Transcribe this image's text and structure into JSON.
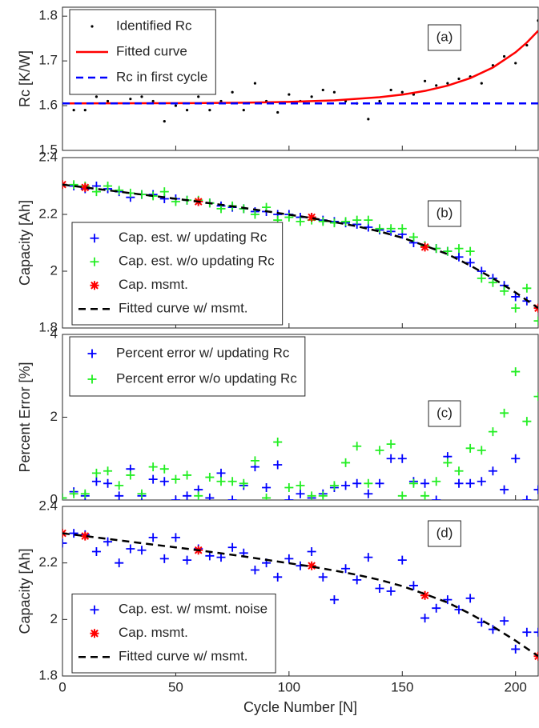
{
  "chart_data": [
    {
      "type": "line",
      "ylabel": "Rc [K/W]",
      "annotation": "(a)",
      "legend": "upper left",
      "xlim": [
        0,
        210
      ],
      "xticks": [
        0,
        50,
        100,
        150,
        200
      ],
      "ylim": [
        1.5,
        1.82
      ],
      "yticks": [
        1.5,
        1.6,
        1.7,
        1.8
      ],
      "series": [
        {
          "name": "Identified Rc",
          "color": "#000000",
          "marker": "dot",
          "x": [
            0,
            5,
            10,
            15,
            20,
            25,
            30,
            35,
            40,
            45,
            50,
            55,
            60,
            65,
            70,
            75,
            80,
            85,
            90,
            95,
            100,
            105,
            110,
            115,
            120,
            125,
            130,
            135,
            140,
            145,
            150,
            155,
            160,
            165,
            170,
            175,
            180,
            185,
            190,
            195,
            200,
            205,
            210
          ],
          "values": [
            1.605,
            1.59,
            1.59,
            1.62,
            1.61,
            1.64,
            1.615,
            1.62,
            1.61,
            1.565,
            1.6,
            1.59,
            1.62,
            1.59,
            1.61,
            1.63,
            1.59,
            1.65,
            1.61,
            1.585,
            1.625,
            1.61,
            1.62,
            1.635,
            1.63,
            1.61,
            1.605,
            1.57,
            1.61,
            1.635,
            1.63,
            1.625,
            1.655,
            1.645,
            1.65,
            1.66,
            1.665,
            1.65,
            1.69,
            1.71,
            1.695,
            1.735,
            1.79
          ]
        },
        {
          "name": "Fitted curve",
          "color": "#ff0000",
          "marker": "none",
          "dash": false,
          "x": [
            0,
            20,
            40,
            60,
            80,
            100,
            120,
            140,
            150,
            160,
            170,
            180,
            190,
            200,
            205,
            210
          ],
          "values": [
            1.6051,
            1.6052,
            1.6054,
            1.6058,
            1.6067,
            1.6084,
            1.6118,
            1.6188,
            1.6246,
            1.6329,
            1.6447,
            1.6615,
            1.6853,
            1.7191,
            1.7411,
            1.7673
          ]
        },
        {
          "name": "Rc in first cycle",
          "color": "#0000ff",
          "marker": "none",
          "dash": true,
          "x": [
            0,
            210
          ],
          "values": [
            1.605,
            1.605
          ]
        }
      ]
    },
    {
      "type": "line",
      "ylabel": "Capacity [Ah]",
      "annotation": "(b)",
      "legend": "lower left",
      "xlim": [
        0,
        210
      ],
      "xticks": [
        0,
        50,
        100,
        150,
        200
      ],
      "ylim": [
        1.8,
        2.4
      ],
      "yticks": [
        1.8,
        2,
        2.2,
        2.4
      ],
      "series": [
        {
          "name": "Cap. est. w/ updating Rc",
          "color": "#0000ff",
          "marker": "plus",
          "x": [
            0,
            5,
            10,
            15,
            20,
            25,
            30,
            35,
            40,
            45,
            50,
            55,
            60,
            65,
            70,
            75,
            80,
            85,
            90,
            95,
            100,
            105,
            110,
            115,
            120,
            125,
            130,
            135,
            140,
            145,
            150,
            155,
            160,
            165,
            170,
            175,
            180,
            185,
            190,
            195,
            200,
            205,
            210
          ],
          "values": [
            2.305,
            2.3,
            2.29,
            2.3,
            2.29,
            2.28,
            2.26,
            2.27,
            2.27,
            2.255,
            2.255,
            2.25,
            2.245,
            2.24,
            2.23,
            2.225,
            2.22,
            2.21,
            2.21,
            2.2,
            2.2,
            2.19,
            2.19,
            2.18,
            2.175,
            2.17,
            2.165,
            2.155,
            2.145,
            2.14,
            2.13,
            2.1,
            2.09,
            2.08,
            2.07,
            2.05,
            2.03,
            2.0,
            1.975,
            1.95,
            1.91,
            1.895,
            1.87
          ]
        },
        {
          "name": "Cap. est. w/o updating Rc",
          "color": "#22ee22",
          "marker": "plus",
          "x": [
            0,
            5,
            10,
            15,
            20,
            25,
            30,
            35,
            40,
            45,
            50,
            55,
            60,
            65,
            70,
            75,
            80,
            85,
            90,
            95,
            100,
            105,
            110,
            115,
            120,
            125,
            130,
            135,
            140,
            145,
            150,
            155,
            160,
            165,
            170,
            175,
            180,
            185,
            190,
            195,
            200,
            205,
            210
          ],
          "values": [
            2.305,
            2.305,
            2.3,
            2.28,
            2.3,
            2.285,
            2.275,
            2.27,
            2.265,
            2.28,
            2.245,
            2.25,
            2.25,
            2.24,
            2.22,
            2.23,
            2.22,
            2.2,
            2.225,
            2.18,
            2.19,
            2.175,
            2.18,
            2.175,
            2.17,
            2.175,
            2.18,
            2.18,
            2.15,
            2.15,
            2.15,
            2.12,
            2.09,
            2.08,
            2.07,
            2.08,
            2.07,
            1.975,
            1.96,
            1.93,
            1.87,
            1.94,
            1.825
          ]
        },
        {
          "name": "Cap. msmt.",
          "color": "#ff0000",
          "marker": "asterisk",
          "x": [
            0,
            10,
            60,
            110,
            160,
            210
          ],
          "values": [
            2.305,
            2.295,
            2.245,
            2.19,
            2.085,
            1.87
          ]
        },
        {
          "name": "Fitted curve w/ msmt.",
          "color": "#000000",
          "marker": "none",
          "dash": true,
          "x": [
            0,
            10,
            20,
            30,
            40,
            50,
            60,
            70,
            80,
            90,
            100,
            110,
            120,
            130,
            140,
            150,
            160,
            170,
            180,
            190,
            200,
            210
          ],
          "values": [
            2.305,
            2.295,
            2.285,
            2.275,
            2.265,
            2.255,
            2.245,
            2.234,
            2.223,
            2.211,
            2.199,
            2.187,
            2.173,
            2.158,
            2.14,
            2.118,
            2.09,
            2.06,
            2.02,
            1.975,
            1.925,
            1.87
          ]
        }
      ]
    },
    {
      "type": "line",
      "ylabel": "Percent Error [%]",
      "annotation": "(c)",
      "legend": "upper left",
      "xlim": [
        0,
        210
      ],
      "xticks": [
        0,
        50,
        100,
        150,
        200
      ],
      "ylim": [
        0,
        4
      ],
      "yticks": [
        0,
        2,
        4
      ],
      "series": [
        {
          "name": "Percent error w/ updating Rc",
          "color": "#0000ff",
          "marker": "plus",
          "x": [
            0,
            5,
            10,
            15,
            20,
            25,
            30,
            35,
            40,
            45,
            50,
            55,
            60,
            65,
            70,
            75,
            80,
            85,
            90,
            95,
            100,
            105,
            110,
            115,
            120,
            125,
            130,
            135,
            140,
            145,
            150,
            155,
            160,
            165,
            170,
            175,
            180,
            185,
            190,
            195,
            200,
            205,
            210
          ],
          "values": [
            0.05,
            0.2,
            0.1,
            0.45,
            0.4,
            0.1,
            0.75,
            0.1,
            0.5,
            0.45,
            0.0,
            0.1,
            0.25,
            0.05,
            0.65,
            0.0,
            0.35,
            0.8,
            0.3,
            0.85,
            0.0,
            0.15,
            0.05,
            0.15,
            0.3,
            0.35,
            0.4,
            0.15,
            0.4,
            1.0,
            1.0,
            0.45,
            0.4,
            0.0,
            1.05,
            0.4,
            0.4,
            0.45,
            0.7,
            0.25,
            1.0,
            0.0,
            0.25
          ]
        },
        {
          "name": "Percent error w/o updating Rc",
          "color": "#22ee22",
          "marker": "plus",
          "x": [
            0,
            5,
            10,
            15,
            20,
            25,
            30,
            35,
            40,
            45,
            50,
            55,
            60,
            65,
            70,
            75,
            80,
            85,
            90,
            95,
            100,
            105,
            110,
            115,
            120,
            125,
            130,
            135,
            140,
            145,
            150,
            155,
            160,
            165,
            170,
            175,
            180,
            185,
            190,
            195,
            200,
            205,
            210
          ],
          "values": [
            0.05,
            0.15,
            0.15,
            0.65,
            0.7,
            0.35,
            0.6,
            0.15,
            0.8,
            0.75,
            0.5,
            0.6,
            0.1,
            0.55,
            0.45,
            0.45,
            0.4,
            0.95,
            0.05,
            1.4,
            0.3,
            0.35,
            0.1,
            0.1,
            0.35,
            0.9,
            1.3,
            0.4,
            1.2,
            1.35,
            0.1,
            0.4,
            0.1,
            0.45,
            0.9,
            0.7,
            1.25,
            1.2,
            1.65,
            2.1,
            3.1,
            1.9,
            2.5
          ]
        }
      ]
    },
    {
      "type": "line",
      "ylabel": "Capacity [Ah]",
      "xlabel": "Cycle Number [N]",
      "annotation": "(d)",
      "legend": "lower left",
      "xlim": [
        0,
        210
      ],
      "xticks": [
        0,
        50,
        100,
        150,
        200
      ],
      "ylim": [
        1.8,
        2.4
      ],
      "yticks": [
        1.8,
        2,
        2.2,
        2.4
      ],
      "series": [
        {
          "name": "Cap. est. w/ msmt. noise",
          "color": "#0000ff",
          "marker": "plus",
          "x": [
            0,
            5,
            10,
            15,
            20,
            25,
            30,
            35,
            40,
            45,
            50,
            55,
            60,
            65,
            70,
            75,
            80,
            85,
            90,
            95,
            100,
            105,
            110,
            115,
            120,
            125,
            130,
            135,
            140,
            145,
            150,
            155,
            160,
            165,
            170,
            175,
            180,
            185,
            190,
            195,
            200,
            205,
            210
          ],
          "values": [
            2.27,
            2.305,
            2.3,
            2.24,
            2.275,
            2.2,
            2.25,
            2.245,
            2.29,
            2.215,
            2.29,
            2.21,
            2.25,
            2.225,
            2.22,
            2.255,
            2.235,
            2.175,
            2.2,
            2.15,
            2.215,
            2.19,
            2.24,
            2.15,
            2.07,
            2.18,
            2.14,
            2.22,
            2.11,
            2.1,
            2.21,
            2.12,
            2.005,
            2.04,
            2.07,
            2.035,
            2.075,
            1.99,
            1.965,
            1.995,
            1.895,
            1.955,
            1.955
          ]
        },
        {
          "name": "Cap. msmt.",
          "color": "#ff0000",
          "marker": "asterisk",
          "x": [
            0,
            10,
            60,
            110,
            160,
            210
          ],
          "values": [
            2.305,
            2.295,
            2.245,
            2.19,
            2.085,
            1.87
          ]
        },
        {
          "name": "Fitted curve w/ msmt.",
          "color": "#000000",
          "marker": "none",
          "dash": true,
          "x": [
            0,
            10,
            20,
            30,
            40,
            50,
            60,
            70,
            80,
            90,
            100,
            110,
            120,
            130,
            140,
            150,
            160,
            170,
            180,
            190,
            200,
            210
          ],
          "values": [
            2.305,
            2.295,
            2.285,
            2.275,
            2.265,
            2.255,
            2.245,
            2.234,
            2.223,
            2.211,
            2.199,
            2.187,
            2.173,
            2.158,
            2.14,
            2.118,
            2.09,
            2.06,
            2.02,
            1.975,
            1.925,
            1.87
          ]
        }
      ]
    }
  ]
}
